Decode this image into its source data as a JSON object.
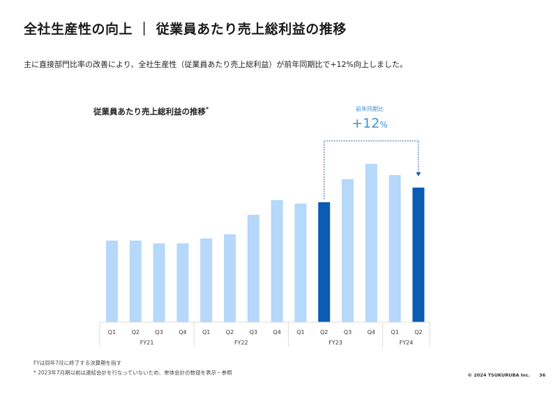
{
  "header": {
    "title": "全社生産性の向上 ｜ 従業員あたり売上総利益の推移",
    "subtitle": "主に直接部門比率の改善により、全社生産性（従業員あたり売上総利益）が前年同期比で+12%向上しました。"
  },
  "chart_data": {
    "type": "bar",
    "title": "従業員あたり売上総利益の推移",
    "title_marker": "*",
    "categories": [
      "Q1",
      "Q2",
      "Q3",
      "Q4",
      "Q1",
      "Q2",
      "Q3",
      "Q4",
      "Q1",
      "Q2",
      "Q3",
      "Q4",
      "Q1",
      "Q2"
    ],
    "groups": [
      {
        "label": "FY21",
        "count": 4
      },
      {
        "label": "FY22",
        "count": 4
      },
      {
        "label": "FY23",
        "count": 4
      },
      {
        "label": "FY24",
        "count": 2
      }
    ],
    "values": [
      117,
      117,
      113,
      113,
      120,
      126,
      154,
      175,
      170,
      172,
      205,
      227,
      211,
      193
    ],
    "highlight_indices": [
      9,
      13
    ],
    "colors": {
      "bar": "#b5d8fb",
      "highlight": "#0b5cb5",
      "annotation": "#3a8fd9",
      "arrow": "#2a5fa8"
    },
    "yaxis_visible": false,
    "grid": false,
    "annotation": {
      "label": "前年同期比",
      "value": "+12",
      "unit": "%",
      "from_index": 9,
      "to_index": 13
    }
  },
  "footer": {
    "footnote1": "FYは同年7月に終了する決算期を指す",
    "footnote2": "*  2023年7月期以前は連結会計を行なっていないため、単体会計の数値を表示・参照",
    "copyright": "© 2024 TSUKURUBA Inc.",
    "page": "36"
  }
}
